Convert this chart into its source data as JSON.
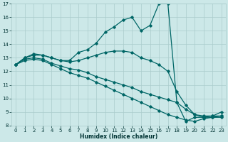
{
  "xlabel": "Humidex (Indice chaleur)",
  "bg_color": "#cce8e8",
  "grid_color": "#aacccc",
  "line_color": "#006666",
  "xlim": [
    -0.5,
    23.5
  ],
  "ylim": [
    8,
    17
  ],
  "yticks": [
    8,
    9,
    10,
    11,
    12,
    13,
    14,
    15,
    16,
    17
  ],
  "xticks": [
    0,
    1,
    2,
    3,
    4,
    5,
    6,
    7,
    8,
    9,
    10,
    11,
    12,
    13,
    14,
    15,
    16,
    17,
    18,
    19,
    20,
    21,
    22,
    23
  ],
  "lines": [
    {
      "x": [
        0,
        1,
        2,
        3,
        4,
        5,
        6,
        7,
        8,
        9,
        10,
        11,
        12,
        13,
        14,
        15,
        16,
        17,
        18,
        19,
        20,
        21,
        22,
        23
      ],
      "y": [
        12.5,
        13.0,
        13.3,
        13.2,
        13.0,
        12.8,
        12.8,
        13.4,
        13.6,
        14.1,
        14.9,
        15.3,
        15.8,
        16.0,
        15.0,
        15.4,
        17.0,
        17.0,
        9.7,
        8.3,
        8.6,
        8.6,
        8.7,
        9.0
      ]
    },
    {
      "x": [
        0,
        1,
        2,
        3,
        4,
        5,
        6,
        7,
        8,
        9,
        10,
        11,
        12,
        13,
        14,
        15,
        16,
        17,
        18,
        19,
        20,
        21,
        22,
        23
      ],
      "y": [
        12.5,
        13.0,
        13.2,
        13.2,
        13.0,
        12.8,
        12.7,
        12.8,
        13.0,
        13.2,
        13.4,
        13.5,
        13.5,
        13.4,
        13.0,
        12.8,
        12.5,
        12.0,
        10.5,
        9.5,
        8.8,
        8.7,
        8.7,
        8.7
      ]
    },
    {
      "x": [
        0,
        1,
        2,
        3,
        4,
        5,
        6,
        7,
        8,
        9,
        10,
        11,
        12,
        13,
        14,
        15,
        16,
        17,
        18,
        19,
        20,
        21,
        22,
        23
      ],
      "y": [
        12.5,
        12.9,
        13.0,
        12.9,
        12.6,
        12.4,
        12.2,
        12.1,
        11.9,
        11.6,
        11.4,
        11.2,
        11.0,
        10.8,
        10.5,
        10.3,
        10.1,
        9.9,
        9.7,
        9.2,
        8.8,
        8.6,
        8.6,
        8.6
      ]
    },
    {
      "x": [
        0,
        1,
        2,
        3,
        4,
        5,
        6,
        7,
        8,
        9,
        10,
        11,
        12,
        13,
        14,
        15,
        16,
        17,
        18,
        19,
        20,
        21,
        22,
        23
      ],
      "y": [
        12.5,
        12.8,
        12.9,
        12.8,
        12.5,
        12.2,
        11.9,
        11.7,
        11.5,
        11.2,
        10.9,
        10.6,
        10.3,
        10.0,
        9.7,
        9.4,
        9.1,
        8.8,
        8.6,
        8.4,
        8.3,
        8.5,
        8.6,
        8.7
      ]
    }
  ]
}
